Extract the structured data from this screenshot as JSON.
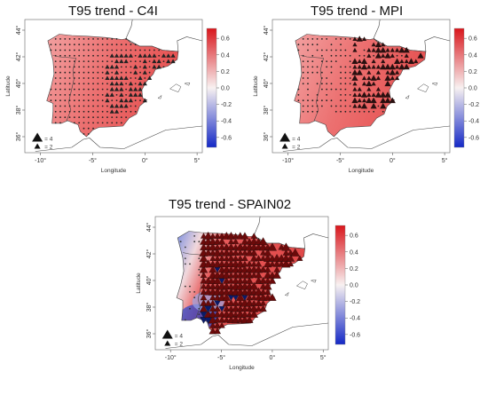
{
  "colors": {
    "high": "#d9161c",
    "mid": "#f8f1f1",
    "low": "#1428c6",
    "land": "#ee7777",
    "dark_tri": "#6b0a0a"
  },
  "axis": {
    "xlabel": "Longitude",
    "ylabel": "Latitude",
    "xticks": [
      "-10°",
      "-5°",
      "0°",
      "5°"
    ],
    "yticks": [
      "36°",
      "38°",
      "40°",
      "42°",
      "44°"
    ]
  },
  "colorbar": {
    "ticks": [
      "0.6",
      "0.4",
      "0.2",
      "0.0",
      "-0.2",
      "-0.4",
      "-0.6"
    ]
  },
  "legend": {
    "big_label": "= 4",
    "small_label": "= 2"
  },
  "maps": [
    {
      "id": "c4i",
      "title": "T95 trend - C4I"
    },
    {
      "id": "mpi",
      "title": "T95 trend - MPI"
    },
    {
      "id": "spain02",
      "title": "T95 trend - SPAIN02"
    }
  ]
}
